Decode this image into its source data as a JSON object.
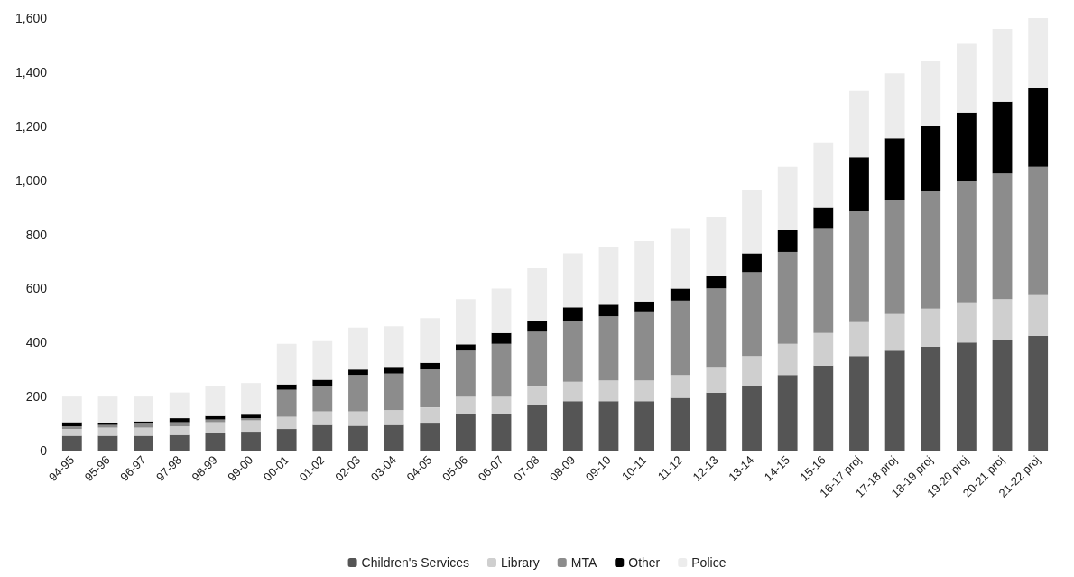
{
  "chart_data": {
    "type": "bar",
    "stacked": true,
    "categories": [
      "94-95",
      "95-96",
      "96-97",
      "97-98",
      "98-99",
      "99-00",
      "00-01",
      "01-02",
      "02-03",
      "03-04",
      "04-05",
      "05-06",
      "06-07",
      "07-08",
      "08-09",
      "09-10",
      "10-11",
      "11-12",
      "12-13",
      "13-14",
      "14-15",
      "15-16",
      "16-17 proj",
      "17-18 proj",
      "18-19 proj",
      "19-20 proj",
      "20-21 proj",
      "21-22 proj"
    ],
    "series": [
      {
        "name": "Children's Services",
        "color": "#555555",
        "values": [
          55,
          55,
          55,
          58,
          65,
          70,
          80,
          95,
          92,
          95,
          100,
          135,
          135,
          170,
          183,
          183,
          183,
          195,
          215,
          240,
          280,
          315,
          350,
          370,
          385,
          400,
          410,
          425
        ]
      },
      {
        "name": "Library",
        "color": "#cfcfcf",
        "values": [
          25,
          30,
          30,
          32,
          40,
          42,
          45,
          50,
          53,
          55,
          60,
          65,
          65,
          67,
          72,
          77,
          77,
          85,
          95,
          110,
          115,
          120,
          125,
          135,
          140,
          145,
          150,
          150
        ]
      },
      {
        "name": "MTA",
        "color": "#8c8c8c",
        "values": [
          10,
          10,
          15,
          15,
          10,
          8,
          100,
          92,
          135,
          135,
          140,
          170,
          195,
          203,
          225,
          237,
          255,
          275,
          290,
          310,
          340,
          385,
          410,
          420,
          435,
          450,
          465,
          475
        ]
      },
      {
        "name": "Other",
        "color": "#000000",
        "values": [
          15,
          8,
          8,
          15,
          13,
          13,
          20,
          25,
          20,
          25,
          25,
          23,
          40,
          40,
          50,
          43,
          37,
          45,
          45,
          70,
          80,
          80,
          200,
          230,
          240,
          255,
          265,
          290
        ]
      },
      {
        "name": "Police",
        "color": "#ececec",
        "values": [
          95,
          97,
          92,
          95,
          112,
          117,
          150,
          143,
          155,
          150,
          165,
          167,
          165,
          195,
          200,
          215,
          223,
          220,
          220,
          235,
          235,
          240,
          245,
          240,
          240,
          255,
          270,
          260
        ]
      }
    ],
    "ylim": [
      0,
      1600
    ],
    "yticks": [
      0,
      200,
      400,
      600,
      800,
      {
        "value": 1000,
        "label": "1,000"
      },
      {
        "value": 1200,
        "label": "1,200"
      },
      {
        "value": 1400,
        "label": "1,400"
      },
      {
        "value": 1600,
        "label": "1,600"
      }
    ],
    "grid": false,
    "legend": "bottom"
  }
}
